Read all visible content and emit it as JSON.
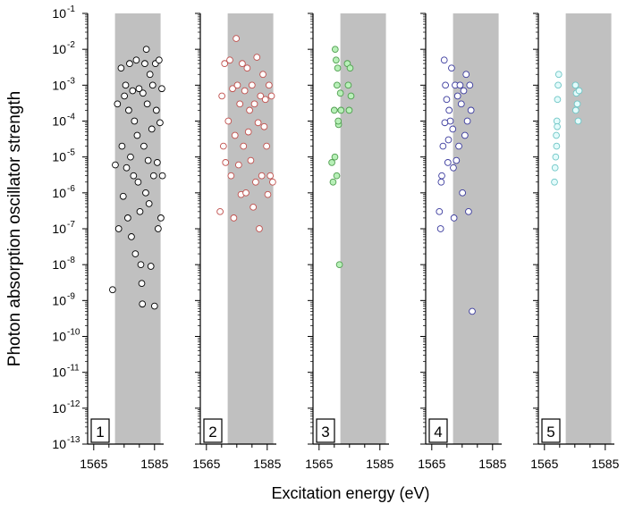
{
  "chart_data": {
    "type": "scatter",
    "xlabel": "Excitation energy (eV)",
    "ylabel": "Photon absorption oscillator strength",
    "yscale": "log",
    "ylim": [
      1e-13,
      0.1
    ],
    "xlim": [
      1563,
      1588
    ],
    "ytick_exponents": [
      "-1",
      "-2",
      "-3",
      "-4",
      "-5",
      "-6",
      "-7",
      "-8",
      "-9",
      "-10",
      "-11",
      "-12",
      "-13"
    ],
    "ytick_base": "10",
    "xticks": [
      "1565",
      "1585"
    ],
    "shaded_band": [
      1572,
      1587
    ],
    "panels": [
      {
        "label": "1",
        "color": "#000000",
        "fill": "#ffffff",
        "points": [
          [
            1571.2,
            2e-09
          ],
          [
            1572.1,
            6e-06
          ],
          [
            1572.8,
            0.0003
          ],
          [
            1573.2,
            1e-07
          ],
          [
            1574.0,
            0.003
          ],
          [
            1574.3,
            2e-05
          ],
          [
            1574.7,
            8e-07
          ],
          [
            1575.1,
            0.0005
          ],
          [
            1575.5,
            0.001
          ],
          [
            1575.8,
            5e-06
          ],
          [
            1576.2,
            2e-07
          ],
          [
            1576.5,
            0.0002
          ],
          [
            1576.8,
            0.004
          ],
          [
            1577.1,
            1e-05
          ],
          [
            1577.4,
            6e-08
          ],
          [
            1577.8,
            0.0007
          ],
          [
            1578.1,
            3e-06
          ],
          [
            1578.4,
            0.0001
          ],
          [
            1578.7,
            2e-08
          ],
          [
            1579.0,
            0.005
          ],
          [
            1579.3,
            4e-05
          ],
          [
            1579.6,
            2e-06
          ],
          [
            1579.9,
            0.0008
          ],
          [
            1580.2,
            3e-07
          ],
          [
            1580.5,
            1e-08
          ],
          [
            1580.8,
            3e-09
          ],
          [
            1581.0,
            8e-10
          ],
          [
            1581.2,
            0.0006
          ],
          [
            1581.5,
            2e-05
          ],
          [
            1581.8,
            0.004
          ],
          [
            1582.1,
            1e-06
          ],
          [
            1582.3,
            0.01
          ],
          [
            1582.6,
            0.0003
          ],
          [
            1582.9,
            8e-06
          ],
          [
            1583.2,
            5e-07
          ],
          [
            1583.5,
            0.002
          ],
          [
            1583.8,
            9e-09
          ],
          [
            1584.1,
            6e-05
          ],
          [
            1584.4,
            0.001
          ],
          [
            1584.7,
            3e-06
          ],
          [
            1585.0,
            7e-10
          ],
          [
            1585.3,
            0.004
          ],
          [
            1585.6,
            0.0002
          ],
          [
            1585.9,
            7e-06
          ],
          [
            1586.2,
            1e-07
          ],
          [
            1586.5,
            0.005
          ],
          [
            1586.8,
            9e-05
          ],
          [
            1587.1,
            2e-07
          ],
          [
            1587.4,
            0.0008
          ],
          [
            1587.6,
            3e-06
          ]
        ]
      },
      {
        "label": "2",
        "color": "#c0504d",
        "fill": "#ffffff",
        "points": [
          [
            1569.5,
            3e-07
          ],
          [
            1570.1,
            0.0005
          ],
          [
            1570.6,
            2e-05
          ],
          [
            1571.0,
            0.004
          ],
          [
            1571.3,
            7e-06
          ],
          [
            1572.2,
            0.0001
          ],
          [
            1572.7,
            0.005
          ],
          [
            1573.1,
            3e-06
          ],
          [
            1573.6,
            0.0008
          ],
          [
            1574.0,
            2e-07
          ],
          [
            1574.4,
            4e-05
          ],
          [
            1574.8,
            0.02
          ],
          [
            1575.2,
            0.001
          ],
          [
            1575.6,
            6e-06
          ],
          [
            1576.0,
            0.0003
          ],
          [
            1576.4,
            9e-07
          ],
          [
            1576.8,
            0.004
          ],
          [
            1577.2,
            2e-05
          ],
          [
            1577.6,
            0.0007
          ],
          [
            1578.0,
            1e-06
          ],
          [
            1578.4,
            0.003
          ],
          [
            1578.8,
            5e-05
          ],
          [
            1579.2,
            0.0002
          ],
          [
            1579.6,
            8e-06
          ],
          [
            1580.0,
            0.001
          ],
          [
            1580.4,
            4e-07
          ],
          [
            1580.8,
            0.0003
          ],
          [
            1581.2,
            2e-06
          ],
          [
            1581.6,
            0.006
          ],
          [
            1582.0,
            9e-05
          ],
          [
            1582.4,
            1e-07
          ],
          [
            1582.8,
            0.0005
          ],
          [
            1583.2,
            3e-06
          ],
          [
            1583.6,
            0.002
          ],
          [
            1584.0,
            7e-05
          ],
          [
            1584.4,
            0.0004
          ],
          [
            1584.8,
            2e-05
          ],
          [
            1585.2,
            9e-07
          ],
          [
            1585.6,
            0.001
          ],
          [
            1586.0,
            3e-06
          ],
          [
            1586.4,
            0.0005
          ],
          [
            1586.8,
            2e-06
          ]
        ]
      },
      {
        "label": "3",
        "color": "#4f9e4f",
        "fill": "#b8f0b8",
        "points": [
          [
            1569.2,
            7e-06
          ],
          [
            1569.6,
            2e-06
          ],
          [
            1570.0,
            0.0002
          ],
          [
            1570.3,
            0.01
          ],
          [
            1570.6,
            0.005
          ],
          [
            1570.9,
            0.001
          ],
          [
            1571.1,
            0.003
          ],
          [
            1571.4,
            8e-05
          ],
          [
            1571.7,
            1e-08
          ],
          [
            1572.0,
            0.0006
          ],
          [
            1572.2,
            0.0002
          ],
          [
            1574.3,
            0.004
          ],
          [
            1574.6,
            0.001
          ],
          [
            1574.9,
            0.0002
          ],
          [
            1575.2,
            0.003
          ],
          [
            1575.5,
            0.0005
          ],
          [
            1570.2,
            1e-05
          ],
          [
            1570.8,
            3e-06
          ],
          [
            1571.3,
            0.0001
          ]
        ]
      },
      {
        "label": "4",
        "color": "#3b3b9e",
        "fill": "#ffffff",
        "points": [
          [
            1567.5,
            3e-07
          ],
          [
            1567.9,
            1e-07
          ],
          [
            1568.3,
            3e-06
          ],
          [
            1568.7,
            2e-05
          ],
          [
            1569.1,
            0.005
          ],
          [
            1569.5,
            0.001
          ],
          [
            1569.9,
            0.0004
          ],
          [
            1570.3,
            7e-06
          ],
          [
            1570.7,
            0.0002
          ],
          [
            1571.1,
            0.0001
          ],
          [
            1571.5,
            0.003
          ],
          [
            1571.9,
            6e-05
          ],
          [
            1572.3,
            2e-07
          ],
          [
            1572.7,
            0.001
          ],
          [
            1573.1,
            8e-06
          ],
          [
            1573.5,
            0.0005
          ],
          [
            1573.9,
            2e-05
          ],
          [
            1574.3,
            0.001
          ],
          [
            1574.7,
            0.0003
          ],
          [
            1575.1,
            1e-06
          ],
          [
            1575.5,
            0.0007
          ],
          [
            1575.9,
            4e-05
          ],
          [
            1576.3,
            0.002
          ],
          [
            1576.7,
            0.0001
          ],
          [
            1577.1,
            3e-07
          ],
          [
            1577.5,
            0.001
          ],
          [
            1577.9,
            0.0002
          ],
          [
            1578.3,
            5e-10
          ],
          [
            1568.1,
            2e-06
          ],
          [
            1569.3,
            9e-05
          ],
          [
            1570.5,
            3e-05
          ],
          [
            1572.1,
            5e-06
          ]
        ]
      },
      {
        "label": "5",
        "color": "#6fc6c6",
        "fill": "#e3fbfb",
        "points": [
          [
            1568.3,
            2e-06
          ],
          [
            1568.5,
            5e-06
          ],
          [
            1568.7,
            1e-05
          ],
          [
            1568.9,
            4e-05
          ],
          [
            1569.1,
            0.0001
          ],
          [
            1569.3,
            0.0004
          ],
          [
            1569.5,
            0.001
          ],
          [
            1569.7,
            0.002
          ],
          [
            1569.2,
            7e-05
          ],
          [
            1569.0,
            2e-05
          ],
          [
            1575.2,
            0.001
          ],
          [
            1575.5,
            0.0006
          ],
          [
            1575.8,
            0.0003
          ],
          [
            1576.1,
            0.0001
          ],
          [
            1576.4,
            0.0007
          ],
          [
            1575.3,
            0.0002
          ]
        ]
      }
    ]
  }
}
